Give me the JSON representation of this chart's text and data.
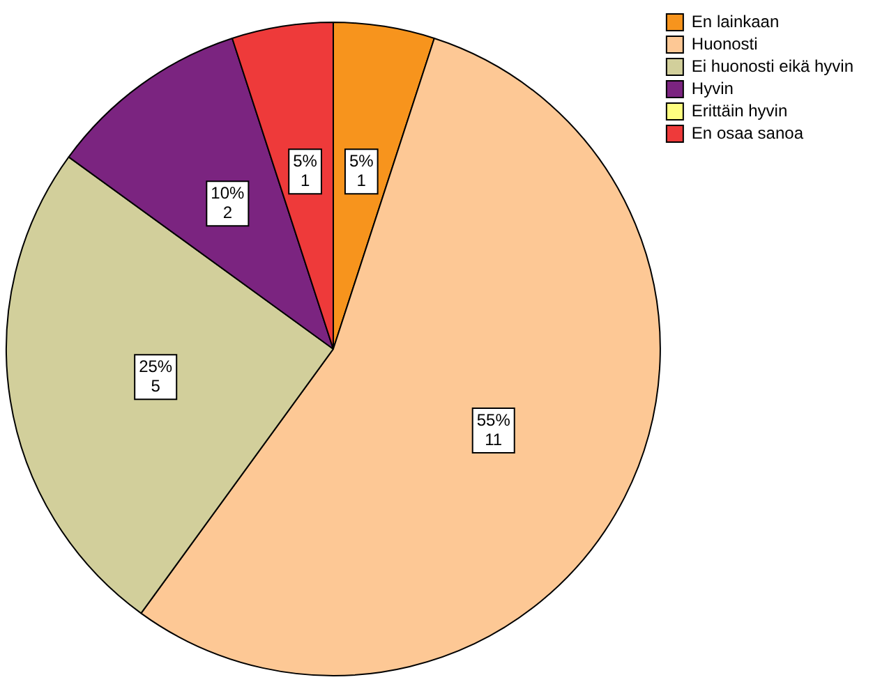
{
  "chart_data": {
    "type": "pie",
    "categories": [
      "En lainkaan",
      "Huonosti",
      "Ei huonosti eikä hyvin",
      "Hyvin",
      "Erittäin hyvin",
      "En osaa sanoa"
    ],
    "values": [
      1,
      11,
      5,
      2,
      0,
      1
    ],
    "colors": [
      "#f7941d",
      "#fdc895",
      "#d2cf9b",
      "#7b2480",
      "#ffff80",
      "#ee3a3a"
    ],
    "value_labels": [
      "5%\n1",
      "55%\n11",
      "25%\n5",
      "10%\n2",
      null,
      "5%\n1"
    ],
    "legend": "top right"
  }
}
